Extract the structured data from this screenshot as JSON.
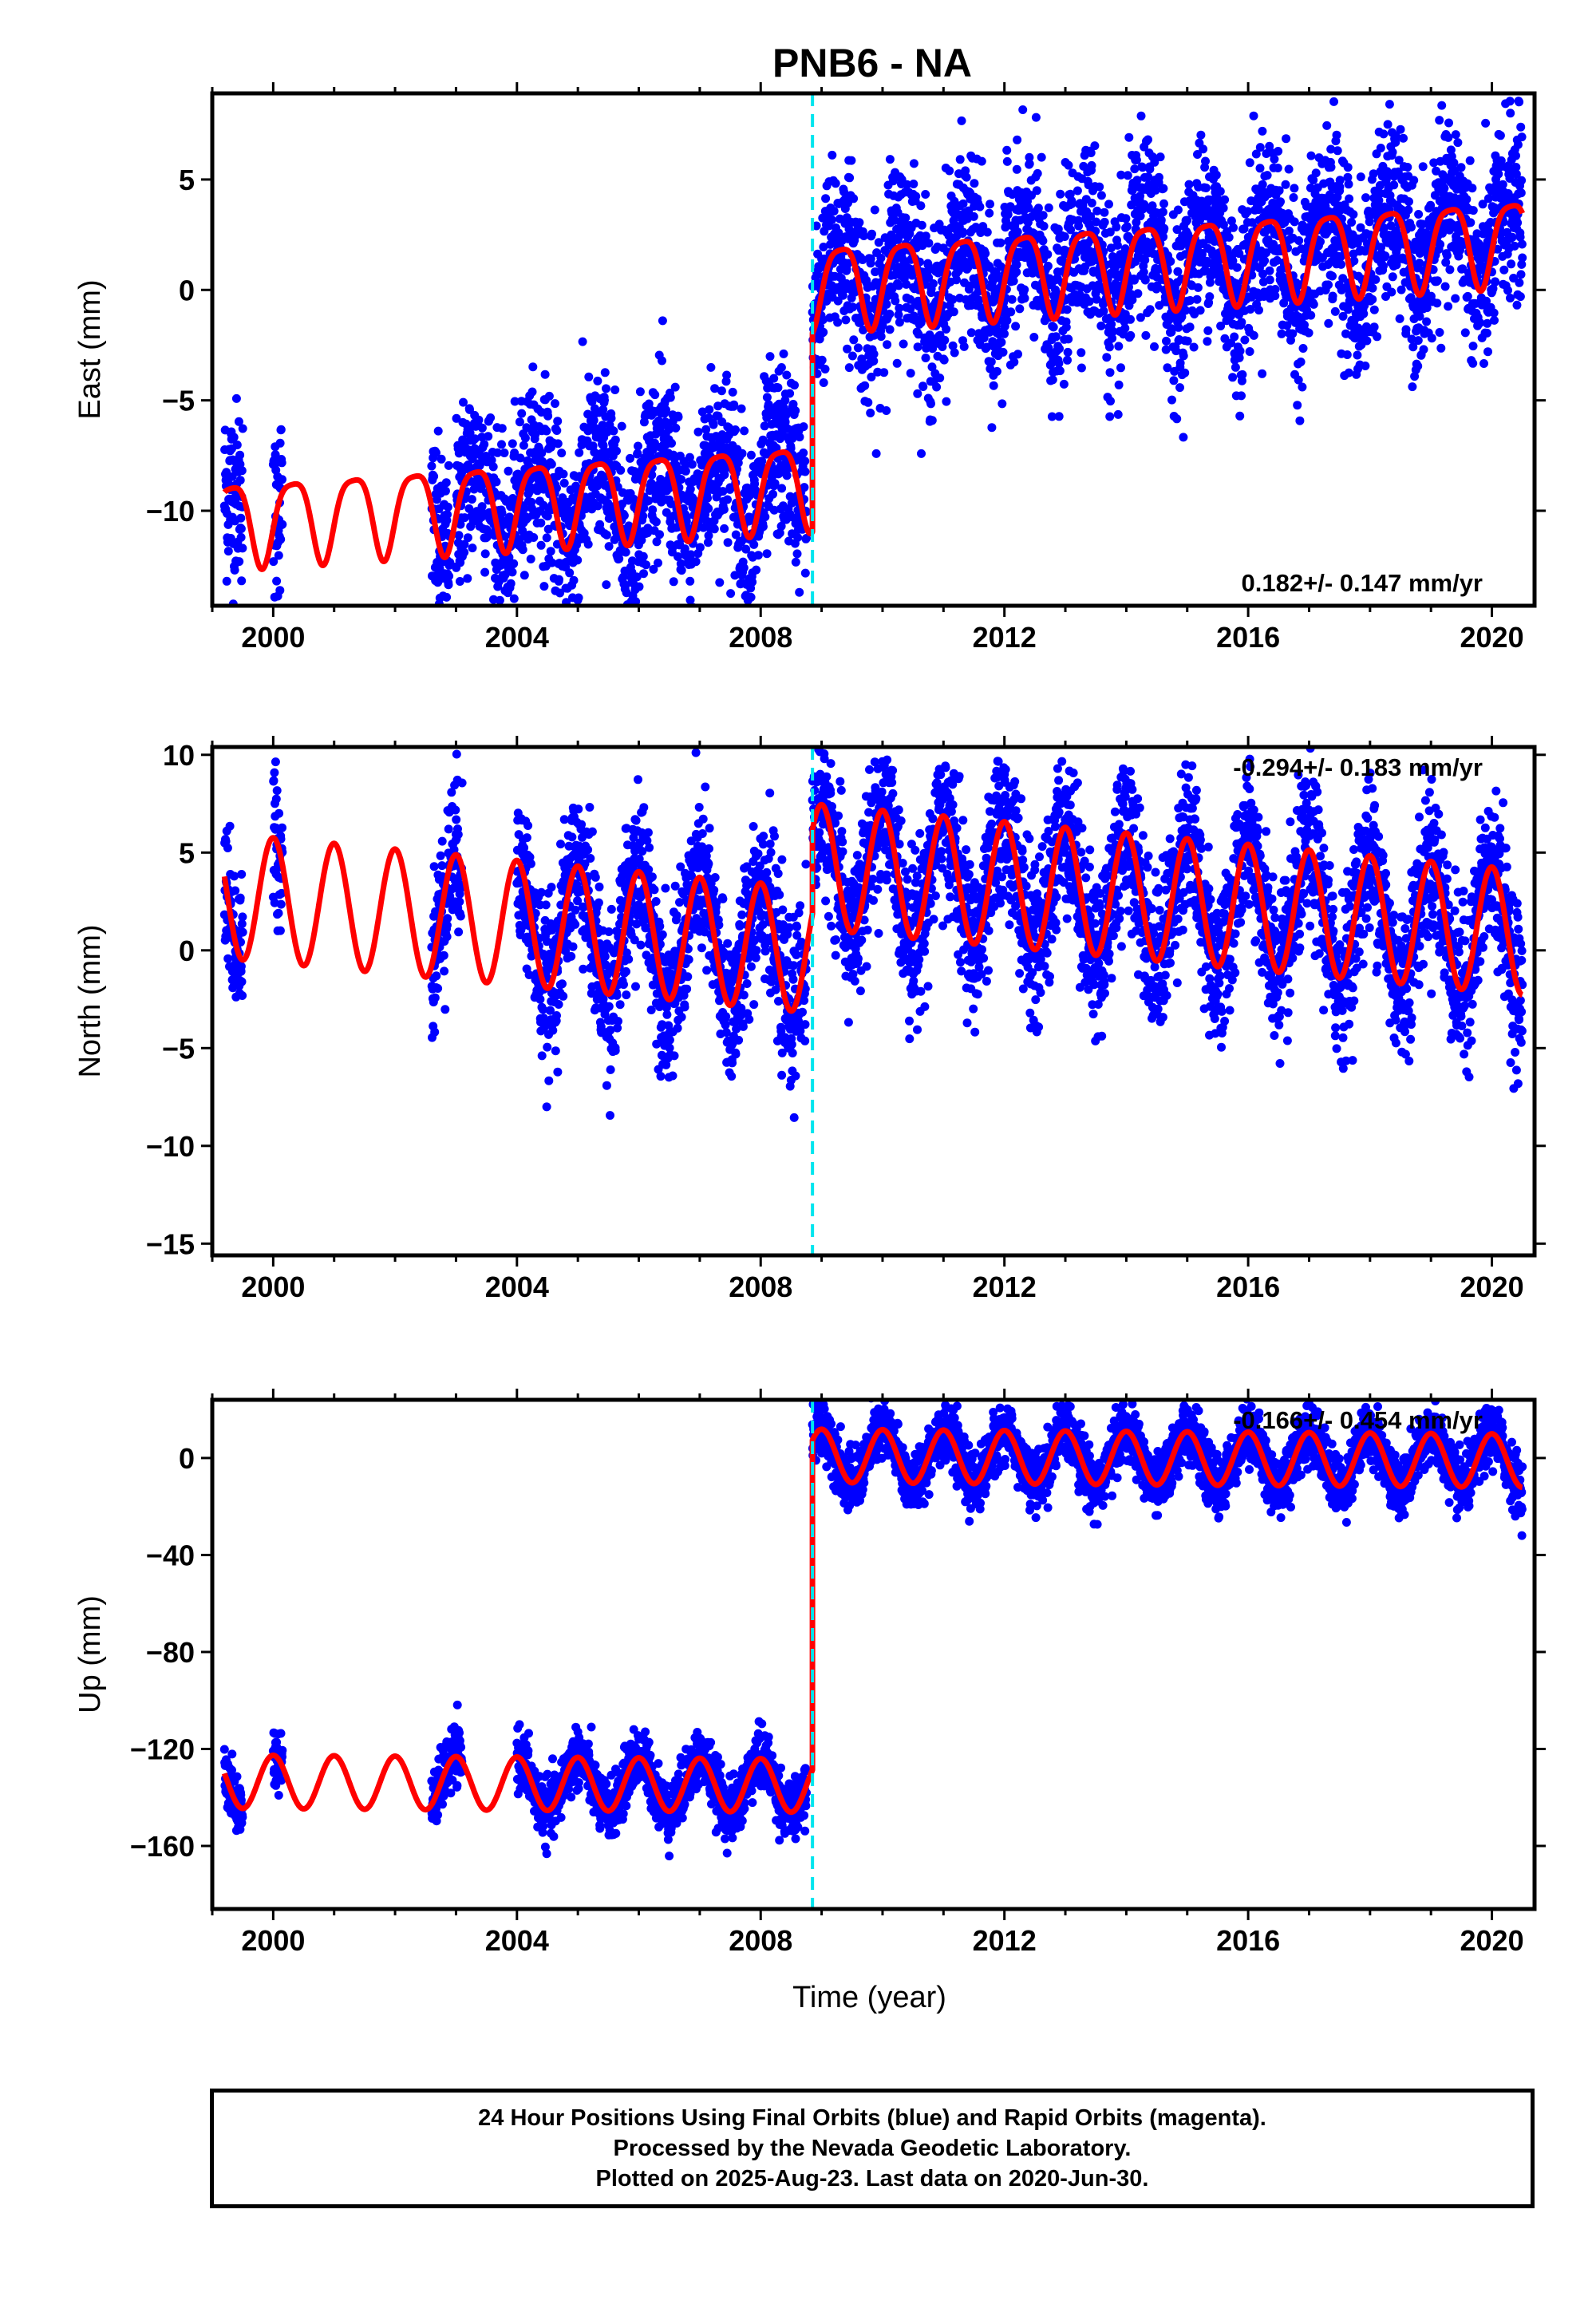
{
  "title": "PNB6 - NA",
  "colors": {
    "data": "#0000ff",
    "model": "#ff0000",
    "offset_line": "#00e5ee",
    "axes": "#000000"
  },
  "chart_data": [
    {
      "type": "scatter",
      "component": "East",
      "ylabel": "East (mm)",
      "xlabel": "",
      "xlim": [
        1999.0,
        2020.7
      ],
      "ylim": [
        -14.3,
        8.9
      ],
      "xticks": [
        2000,
        2004,
        2008,
        2012,
        2016,
        2020
      ],
      "yticks": [
        5,
        0,
        -5,
        -10
      ],
      "ytick_labels": [
        "5",
        "0",
        "−5",
        "−10"
      ],
      "offset_epoch": 2008.85,
      "rate_label": "0.182+/- 0.147 mm/yr",
      "rate_label_position": "bottom-right",
      "model": {
        "before_offset": -7.8,
        "after_offset": 1.2,
        "trend": 0.18,
        "sin": 1.7,
        "cos": -0.8,
        "semi_sin": 0.3,
        "semi_cos": 0.3
      },
      "data_scatter": 2.0,
      "data_segments": [
        [
          1999.2,
          1999.5
        ],
        [
          2000.0,
          2000.15
        ],
        [
          2002.6,
          2002.9
        ],
        [
          2003.0,
          2008.75
        ],
        [
          2008.85,
          2020.5
        ]
      ]
    },
    {
      "type": "scatter",
      "component": "North",
      "ylabel": "North (mm)",
      "xlabel": "",
      "xlim": [
        1999.0,
        2020.7
      ],
      "ylim": [
        -15.6,
        10.4
      ],
      "xticks": [
        2000,
        2004,
        2008,
        2012,
        2016,
        2020
      ],
      "yticks": [
        10,
        5,
        0,
        -5,
        -10,
        -15
      ],
      "ytick_labels": [
        "10",
        "5",
        "0",
        "−5",
        "−10",
        "−15"
      ],
      "offset_epoch": 2008.85,
      "rate_label": "-0.294+/- 0.183 mm/yr",
      "rate_label_position": "top-right",
      "model": {
        "before_offset": -1.5,
        "after_offset": 2.8,
        "trend": -0.29,
        "sin": 0.0,
        "cos": 3.2,
        "semi_sin": 0.0,
        "semi_cos": 0.0
      },
      "data_scatter": 2.0,
      "data_segments": [
        [
          1999.2,
          1999.5
        ],
        [
          2000.0,
          2000.15
        ],
        [
          2002.6,
          2003.1
        ],
        [
          2004.0,
          2008.75
        ],
        [
          2008.85,
          2020.5
        ]
      ]
    },
    {
      "type": "scatter",
      "component": "Up",
      "ylabel": "Up (mm)",
      "xlabel": "Time (year)",
      "xlim": [
        1999.0,
        2020.7
      ],
      "ylim": [
        -186,
        24
      ],
      "xticks": [
        2000,
        2004,
        2008,
        2012,
        2016,
        2020
      ],
      "yticks": [
        0,
        -40,
        -80,
        -120,
        -160
      ],
      "ytick_labels": [
        "0",
        "−40",
        "−80",
        "−120",
        "−160"
      ],
      "offset_epoch": 2008.85,
      "rate_label": "-0.166+/- 0.454 mm/yr",
      "rate_label_position": "top-right",
      "model": {
        "before_offset": -136,
        "after_offset": 0.0,
        "trend": -0.17,
        "sin": 0.0,
        "cos": 11.0,
        "semi_sin": 0.0,
        "semi_cos": 0.0
      },
      "data_scatter": 6.0,
      "data_segments": [
        [
          1999.2,
          1999.5
        ],
        [
          2000.0,
          2000.15
        ],
        [
          2002.6,
          2003.1
        ],
        [
          2004.0,
          2008.75
        ],
        [
          2008.85,
          2020.5
        ]
      ]
    }
  ],
  "footer": {
    "line1": "24 Hour Positions Using Final Orbits (blue) and Rapid Orbits (magenta).",
    "line2": "Processed by the Nevada Geodetic Laboratory.",
    "line3": "Plotted on 2025-Aug-23. Last data on 2020-Jun-30."
  }
}
